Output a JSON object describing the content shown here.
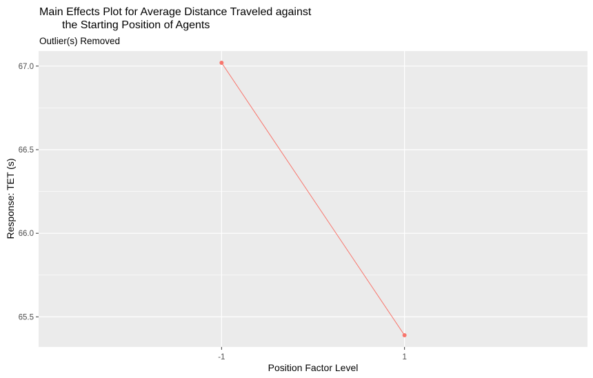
{
  "chart_data": {
    "type": "line",
    "title_line1": "Main Effects Plot for Average Distance Traveled against",
    "title_line2": "the Starting Position of Agents",
    "subtitle": "Outlier(s) Removed",
    "xlabel": "Position Factor Level",
    "ylabel": "Response: TET (s)",
    "categories": [
      "-1",
      "1"
    ],
    "values": [
      67.02,
      65.39
    ],
    "yticks": [
      65.5,
      66.0,
      66.5,
      67.0
    ],
    "ytick_labels": [
      "65.5",
      "66.0",
      "66.5",
      "67.0"
    ],
    "ylim": [
      65.32,
      67.09
    ],
    "grid": true,
    "legend": "none",
    "colors": {
      "panel": "#ebebeb",
      "grid_major": "#ffffff",
      "series": "#f8766d",
      "tick": "#333333"
    }
  }
}
